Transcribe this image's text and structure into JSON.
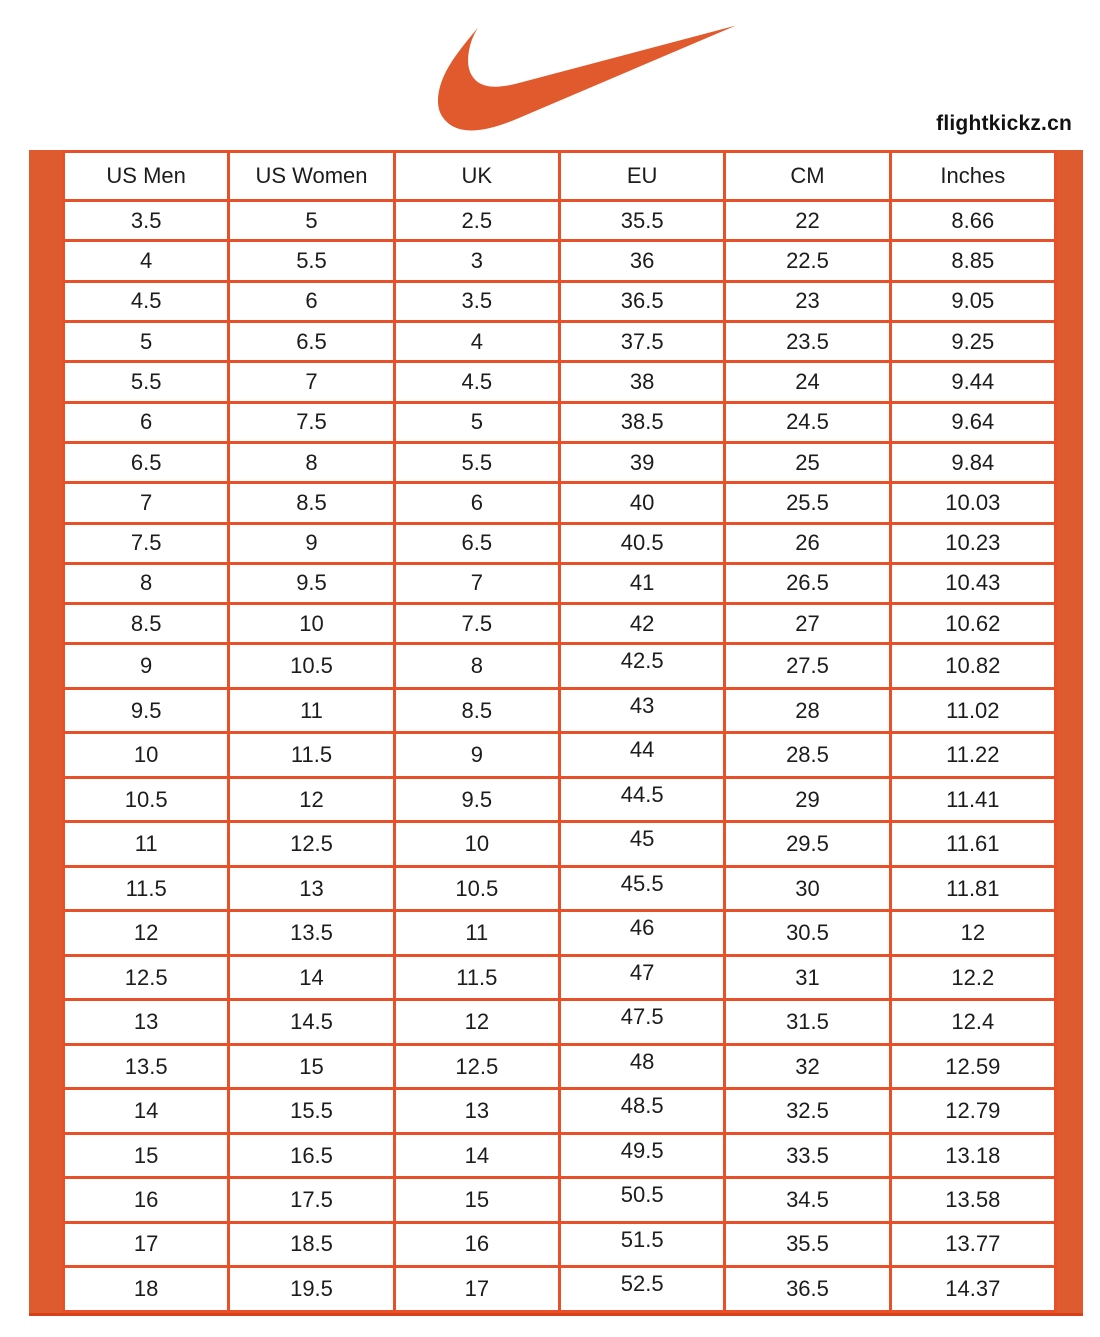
{
  "brand": {
    "site": "flightkickz.cn",
    "logo_icon": "nike-swoosh"
  },
  "colors": {
    "accent_bar": "#de5b2f",
    "table_border": "#e8502a",
    "bottom_rule": "#d84018",
    "swoosh": "#e15a2d",
    "text": "#1c1c1c",
    "background": "#ffffff"
  },
  "chart_data": {
    "type": "table",
    "columns": [
      "US Men",
      "US Women",
      "UK",
      "EU",
      "CM",
      "Inches"
    ],
    "rows": [
      [
        "3.5",
        "5",
        "2.5",
        "35.5",
        "22",
        "8.66"
      ],
      [
        "4",
        "5.5",
        "3",
        "36",
        "22.5",
        "8.85"
      ],
      [
        "4.5",
        "6",
        "3.5",
        "36.5",
        "23",
        "9.05"
      ],
      [
        "5",
        "6.5",
        "4",
        "37.5",
        "23.5",
        "9.25"
      ],
      [
        "5.5",
        "7",
        "4.5",
        "38",
        "24",
        "9.44"
      ],
      [
        "6",
        "7.5",
        "5",
        "38.5",
        "24.5",
        "9.64"
      ],
      [
        "6.5",
        "8",
        "5.5",
        "39",
        "25",
        "9.84"
      ],
      [
        "7",
        "8.5",
        "6",
        "40",
        "25.5",
        "10.03"
      ],
      [
        "7.5",
        "9",
        "6.5",
        "40.5",
        "26",
        "10.23"
      ],
      [
        "8",
        "9.5",
        "7",
        "41",
        "26.5",
        "10.43"
      ],
      [
        "8.5",
        "10",
        "7.5",
        "42",
        "27",
        "10.62"
      ],
      [
        "9",
        "10.5",
        "8",
        "42.5",
        "27.5",
        "10.82"
      ],
      [
        "9.5",
        "11",
        "8.5",
        "43",
        "28",
        "11.02"
      ],
      [
        "10",
        "11.5",
        "9",
        "44",
        "28.5",
        "11.22"
      ],
      [
        "10.5",
        "12",
        "9.5",
        "44.5",
        "29",
        "11.41"
      ],
      [
        "11",
        "12.5",
        "10",
        "45",
        "29.5",
        "11.61"
      ],
      [
        "11.5",
        "13",
        "10.5",
        "45.5",
        "30",
        "11.81"
      ],
      [
        "12",
        "13.5",
        "11",
        "46",
        "30.5",
        "12"
      ],
      [
        "12.5",
        "14",
        "11.5",
        "47",
        "31",
        "12.2"
      ],
      [
        "13",
        "14.5",
        "12",
        "47.5",
        "31.5",
        "12.4"
      ],
      [
        "13.5",
        "15",
        "12.5",
        "48",
        "32",
        "12.59"
      ],
      [
        "14",
        "15.5",
        "13",
        "48.5",
        "32.5",
        "12.79"
      ],
      [
        "15",
        "16.5",
        "14",
        "49.5",
        "33.5",
        "13.18"
      ],
      [
        "16",
        "17.5",
        "15",
        "50.5",
        "34.5",
        "13.58"
      ],
      [
        "17",
        "18.5",
        "16",
        "51.5",
        "35.5",
        "13.77"
      ],
      [
        "18",
        "19.5",
        "17",
        "52.5",
        "36.5",
        "14.37"
      ]
    ]
  }
}
